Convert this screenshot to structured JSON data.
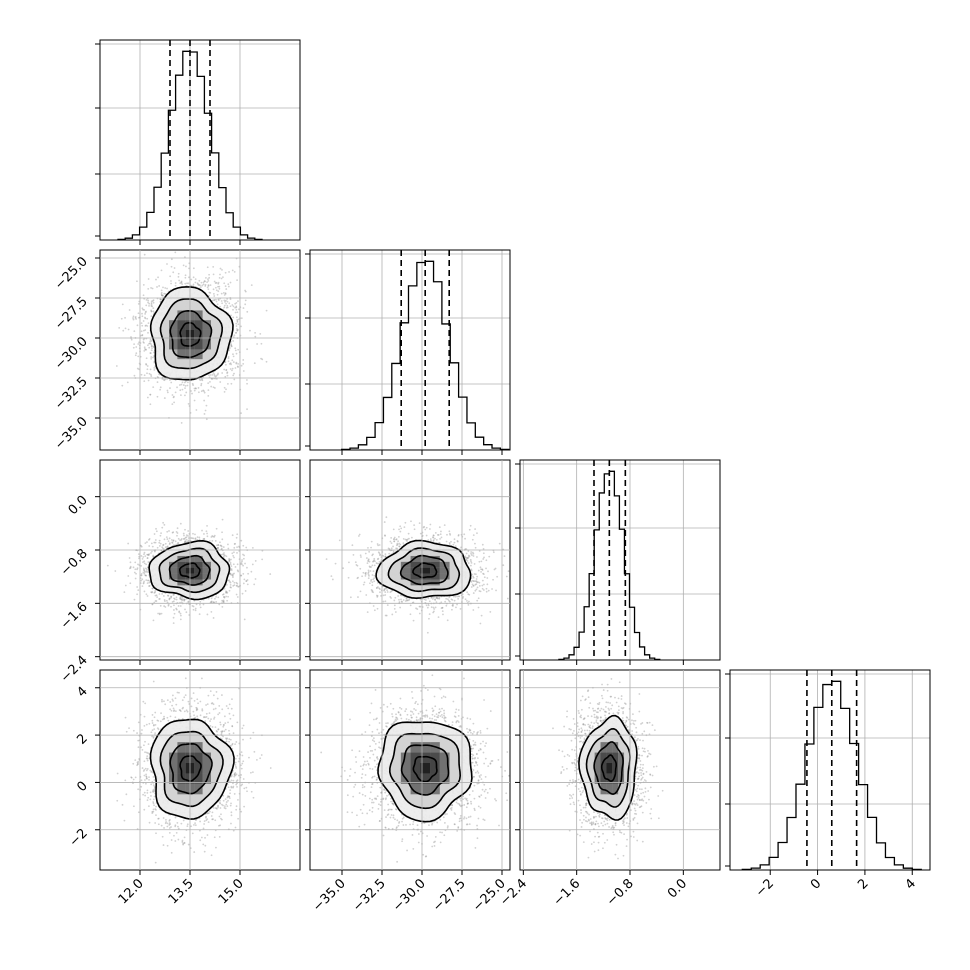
{
  "chart_data": {
    "type": "corner",
    "title": "",
    "params": [
      {
        "mean": 13.5,
        "sd": 0.6,
        "q16": 12.9,
        "q50": 13.5,
        "q84": 14.1,
        "lim": [
          10.8,
          16.8
        ],
        "ticks": [
          12.0,
          13.5,
          15.0
        ],
        "tick_labels": [
          "12.0",
          "13.5",
          "15.0"
        ]
      },
      {
        "mean": -29.8,
        "sd": 1.45,
        "q16": -31.3,
        "q50": -29.8,
        "q84": -28.3,
        "lim": [
          -37.0,
          -24.5
        ],
        "ticks": [
          -35.0,
          -32.5,
          -30.0,
          -27.5,
          -25.0
        ],
        "tick_labels": [
          "−35.0",
          "−32.5",
          "−30.0",
          "−27.5",
          "−25.0"
        ]
      },
      {
        "mean": -1.11,
        "sd": 0.21,
        "q16": -1.34,
        "q50": -1.11,
        "q84": -0.87,
        "lim": [
          -2.45,
          0.55
        ],
        "ticks": [
          -2.4,
          -1.6,
          -0.8,
          0.0
        ],
        "tick_labels": [
          "−2.4",
          "−1.6",
          "−0.8",
          "0.0"
        ]
      },
      {
        "mean": 0.6,
        "sd": 1.05,
        "q16": -0.45,
        "q50": 0.6,
        "q84": 1.65,
        "lim": [
          -3.7,
          4.75
        ],
        "ticks": [
          -2,
          0,
          2,
          4
        ],
        "tick_labels": [
          "−2",
          "0",
          "2",
          "4"
        ]
      }
    ],
    "contour_levels_sigma": [
      0.5,
      1.0,
      1.5,
      2.0
    ],
    "grid": true,
    "histogram_bins": 20,
    "samples_per_panel": 2500
  }
}
